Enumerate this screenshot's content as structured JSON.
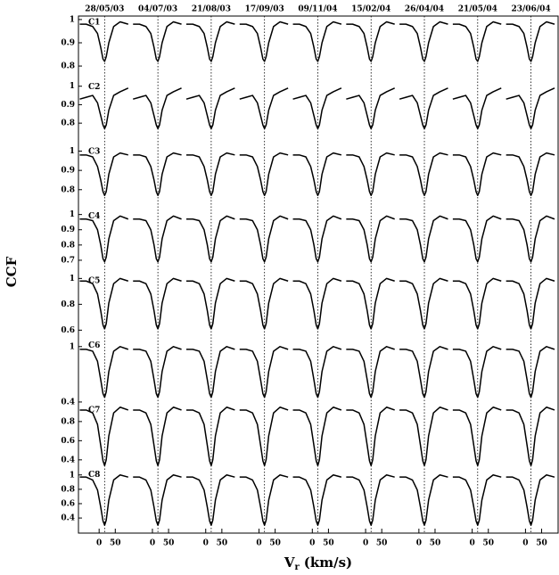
{
  "chart_data": {
    "type": "line",
    "y_label": "CCF",
    "x_label_symbol": "V",
    "x_label_subscript": "r",
    "x_label_units": "(km/s)",
    "columns": [
      "28/05/03",
      "04/07/03",
      "21/08/03",
      "17/09/03",
      "09/11/04",
      "15/02/04",
      "26/04/04",
      "21/05/04",
      "23/06/04"
    ],
    "x": [
      -60,
      -40,
      -20,
      -5,
      5,
      12,
      17,
      22,
      30,
      45,
      65,
      90
    ],
    "xlim": [
      -64,
      101
    ],
    "xticks": [
      0,
      50
    ],
    "reference_x": 17,
    "color": "#000000",
    "rows": [
      {
        "name": "C1",
        "ylim": [
          0.737,
          1.015
        ],
        "yticks": [
          0.8,
          0.9,
          1
        ],
        "values": [
          [
            0.98,
            0.98,
            0.97,
            0.94,
            0.88,
            0.83,
            0.82,
            0.84,
            0.9,
            0.97,
            0.99,
            0.98
          ],
          [
            0.98,
            0.98,
            0.97,
            0.94,
            0.88,
            0.83,
            0.82,
            0.84,
            0.9,
            0.97,
            0.99,
            0.98
          ],
          [
            0.98,
            0.98,
            0.97,
            0.94,
            0.88,
            0.83,
            0.82,
            0.84,
            0.9,
            0.97,
            0.99,
            0.98
          ],
          [
            0.98,
            0.98,
            0.97,
            0.94,
            0.88,
            0.83,
            0.82,
            0.84,
            0.9,
            0.97,
            0.99,
            0.98
          ],
          [
            0.98,
            0.98,
            0.97,
            0.94,
            0.88,
            0.83,
            0.82,
            0.84,
            0.9,
            0.97,
            0.99,
            0.98
          ],
          [
            0.98,
            0.98,
            0.97,
            0.94,
            0.88,
            0.83,
            0.82,
            0.84,
            0.9,
            0.97,
            0.99,
            0.98
          ],
          [
            0.98,
            0.98,
            0.97,
            0.94,
            0.88,
            0.83,
            0.82,
            0.84,
            0.9,
            0.97,
            0.99,
            0.98
          ],
          [
            0.98,
            0.98,
            0.97,
            0.94,
            0.88,
            0.83,
            0.82,
            0.84,
            0.9,
            0.97,
            0.99,
            0.98
          ],
          [
            0.98,
            0.98,
            0.97,
            0.94,
            0.88,
            0.83,
            0.82,
            0.84,
            0.9,
            0.97,
            0.99,
            0.98
          ]
        ]
      },
      {
        "name": "C2",
        "ylim": [
          0.68,
          1.03
        ],
        "yticks": [
          0.8,
          0.9,
          1
        ],
        "values": [
          [
            0.93,
            0.94,
            0.95,
            0.91,
            0.84,
            0.79,
            0.77,
            0.79,
            0.87,
            0.95,
            0.97,
            0.99
          ],
          [
            0.93,
            0.94,
            0.95,
            0.91,
            0.84,
            0.79,
            0.77,
            0.79,
            0.87,
            0.95,
            0.97,
            0.99
          ],
          [
            0.93,
            0.94,
            0.95,
            0.91,
            0.84,
            0.79,
            0.77,
            0.79,
            0.87,
            0.95,
            0.97,
            0.99
          ],
          [
            0.93,
            0.94,
            0.95,
            0.91,
            0.84,
            0.79,
            0.77,
            0.79,
            0.87,
            0.95,
            0.97,
            0.99
          ],
          [
            0.93,
            0.94,
            0.95,
            0.91,
            0.84,
            0.79,
            0.77,
            0.79,
            0.87,
            0.95,
            0.97,
            0.99
          ],
          [
            0.93,
            0.94,
            0.95,
            0.91,
            0.84,
            0.79,
            0.77,
            0.79,
            0.87,
            0.95,
            0.97,
            0.99
          ],
          [
            0.93,
            0.94,
            0.95,
            0.91,
            0.84,
            0.79,
            0.77,
            0.79,
            0.87,
            0.95,
            0.97,
            0.99
          ],
          [
            0.93,
            0.94,
            0.95,
            0.91,
            0.84,
            0.79,
            0.77,
            0.79,
            0.87,
            0.95,
            0.97,
            0.99
          ],
          [
            0.93,
            0.94,
            0.95,
            0.91,
            0.84,
            0.79,
            0.77,
            0.79,
            0.87,
            0.95,
            0.97,
            0.99
          ]
        ]
      },
      {
        "name": "C3",
        "ylim": [
          0.695,
          1.03
        ],
        "yticks": [
          0.8,
          0.9,
          1
        ],
        "values": [
          [
            0.98,
            0.98,
            0.97,
            0.92,
            0.85,
            0.79,
            0.77,
            0.79,
            0.88,
            0.97,
            0.99,
            0.98
          ],
          [
            0.98,
            0.98,
            0.97,
            0.92,
            0.85,
            0.79,
            0.77,
            0.79,
            0.88,
            0.97,
            0.99,
            0.98
          ],
          [
            0.98,
            0.98,
            0.97,
            0.92,
            0.85,
            0.79,
            0.77,
            0.79,
            0.88,
            0.97,
            0.99,
            0.98
          ],
          [
            0.98,
            0.98,
            0.97,
            0.92,
            0.85,
            0.79,
            0.77,
            0.79,
            0.88,
            0.97,
            0.99,
            0.98
          ],
          [
            0.98,
            0.98,
            0.97,
            0.92,
            0.85,
            0.79,
            0.77,
            0.79,
            0.88,
            0.97,
            0.99,
            0.98
          ],
          [
            0.98,
            0.98,
            0.97,
            0.92,
            0.85,
            0.79,
            0.77,
            0.79,
            0.88,
            0.97,
            0.99,
            0.98
          ],
          [
            0.98,
            0.98,
            0.97,
            0.92,
            0.85,
            0.79,
            0.77,
            0.79,
            0.88,
            0.97,
            0.99,
            0.98
          ],
          [
            0.98,
            0.98,
            0.97,
            0.92,
            0.85,
            0.79,
            0.77,
            0.79,
            0.88,
            0.97,
            0.99,
            0.98
          ],
          [
            0.98,
            0.98,
            0.97,
            0.92,
            0.85,
            0.79,
            0.77,
            0.79,
            0.88,
            0.97,
            0.99,
            0.98
          ]
        ]
      },
      {
        "name": "C4",
        "ylim": [
          0.606,
          1.03
        ],
        "yticks": [
          0.7,
          0.8,
          0.9,
          1
        ],
        "values": [
          [
            0.97,
            0.97,
            0.96,
            0.9,
            0.8,
            0.71,
            0.69,
            0.72,
            0.84,
            0.96,
            0.99,
            0.97
          ],
          [
            0.97,
            0.97,
            0.96,
            0.9,
            0.8,
            0.71,
            0.69,
            0.72,
            0.84,
            0.96,
            0.99,
            0.97
          ],
          [
            0.97,
            0.97,
            0.96,
            0.9,
            0.8,
            0.71,
            0.69,
            0.72,
            0.84,
            0.96,
            0.99,
            0.97
          ],
          [
            0.97,
            0.97,
            0.96,
            0.9,
            0.8,
            0.71,
            0.69,
            0.72,
            0.84,
            0.96,
            0.99,
            0.97
          ],
          [
            0.97,
            0.97,
            0.96,
            0.9,
            0.8,
            0.71,
            0.69,
            0.72,
            0.84,
            0.96,
            0.99,
            0.97
          ],
          [
            0.97,
            0.97,
            0.96,
            0.9,
            0.8,
            0.71,
            0.69,
            0.72,
            0.84,
            0.96,
            0.99,
            0.97
          ],
          [
            0.97,
            0.97,
            0.96,
            0.9,
            0.8,
            0.71,
            0.69,
            0.72,
            0.84,
            0.96,
            0.99,
            0.97
          ],
          [
            0.97,
            0.97,
            0.96,
            0.9,
            0.8,
            0.71,
            0.69,
            0.72,
            0.84,
            0.96,
            0.99,
            0.97
          ],
          [
            0.97,
            0.97,
            0.96,
            0.9,
            0.8,
            0.71,
            0.69,
            0.72,
            0.84,
            0.96,
            0.99,
            0.97
          ]
        ]
      },
      {
        "name": "C5",
        "ylim": [
          0.53,
          1.03
        ],
        "yticks": [
          0.6,
          0.8,
          1
        ],
        "values": [
          [
            0.98,
            0.98,
            0.96,
            0.88,
            0.75,
            0.64,
            0.61,
            0.65,
            0.81,
            0.96,
            1.0,
            0.98
          ],
          [
            0.98,
            0.98,
            0.96,
            0.88,
            0.75,
            0.64,
            0.61,
            0.65,
            0.81,
            0.96,
            1.0,
            0.98
          ],
          [
            0.98,
            0.98,
            0.96,
            0.88,
            0.75,
            0.64,
            0.61,
            0.65,
            0.81,
            0.96,
            1.0,
            0.98
          ],
          [
            0.98,
            0.98,
            0.96,
            0.88,
            0.75,
            0.64,
            0.61,
            0.65,
            0.81,
            0.96,
            1.0,
            0.98
          ],
          [
            0.98,
            0.98,
            0.96,
            0.88,
            0.75,
            0.64,
            0.61,
            0.65,
            0.81,
            0.96,
            1.0,
            0.98
          ],
          [
            0.98,
            0.98,
            0.96,
            0.88,
            0.75,
            0.64,
            0.61,
            0.65,
            0.81,
            0.96,
            1.0,
            0.98
          ],
          [
            0.98,
            0.98,
            0.96,
            0.88,
            0.75,
            0.64,
            0.61,
            0.65,
            0.81,
            0.96,
            1.0,
            0.98
          ],
          [
            0.98,
            0.98,
            0.96,
            0.88,
            0.75,
            0.64,
            0.61,
            0.65,
            0.81,
            0.96,
            1.0,
            0.98
          ],
          [
            0.98,
            0.98,
            0.96,
            0.88,
            0.75,
            0.64,
            0.61,
            0.65,
            0.81,
            0.96,
            1.0,
            0.98
          ]
        ]
      },
      {
        "name": "C6",
        "ylim": [
          0.38,
          1.08
        ],
        "yticks": [
          0.4,
          1
        ],
        "values": [
          [
            0.97,
            0.97,
            0.95,
            0.84,
            0.64,
            0.49,
            0.45,
            0.51,
            0.73,
            0.95,
            1.0,
            0.97
          ],
          [
            0.97,
            0.97,
            0.95,
            0.84,
            0.64,
            0.49,
            0.45,
            0.51,
            0.73,
            0.95,
            1.0,
            0.97
          ],
          [
            0.97,
            0.97,
            0.95,
            0.84,
            0.64,
            0.49,
            0.45,
            0.51,
            0.73,
            0.95,
            1.0,
            0.97
          ],
          [
            0.97,
            0.97,
            0.95,
            0.84,
            0.64,
            0.49,
            0.45,
            0.51,
            0.73,
            0.95,
            1.0,
            0.97
          ],
          [
            0.97,
            0.97,
            0.95,
            0.84,
            0.64,
            0.49,
            0.45,
            0.51,
            0.73,
            0.95,
            1.0,
            0.97
          ],
          [
            0.97,
            0.97,
            0.95,
            0.84,
            0.64,
            0.49,
            0.45,
            0.51,
            0.73,
            0.95,
            1.0,
            0.97
          ],
          [
            0.97,
            0.97,
            0.95,
            0.84,
            0.64,
            0.49,
            0.45,
            0.51,
            0.73,
            0.95,
            1.0,
            0.97
          ],
          [
            0.97,
            0.97,
            0.95,
            0.84,
            0.64,
            0.49,
            0.45,
            0.51,
            0.73,
            0.95,
            1.0,
            0.97
          ],
          [
            0.97,
            0.97,
            0.95,
            0.84,
            0.64,
            0.49,
            0.45,
            0.51,
            0.73,
            0.95,
            1.0,
            0.97
          ]
        ]
      },
      {
        "name": "C7",
        "ylim": [
          0.31,
          0.985
        ],
        "yticks": [
          0.4,
          0.6,
          0.8
        ],
        "values": [
          [
            0.92,
            0.92,
            0.89,
            0.77,
            0.55,
            0.39,
            0.34,
            0.4,
            0.65,
            0.89,
            0.95,
            0.92
          ],
          [
            0.92,
            0.92,
            0.89,
            0.77,
            0.55,
            0.39,
            0.34,
            0.4,
            0.65,
            0.89,
            0.95,
            0.92
          ],
          [
            0.92,
            0.92,
            0.89,
            0.77,
            0.55,
            0.39,
            0.34,
            0.4,
            0.65,
            0.89,
            0.95,
            0.92
          ],
          [
            0.92,
            0.92,
            0.89,
            0.77,
            0.55,
            0.39,
            0.34,
            0.4,
            0.65,
            0.89,
            0.95,
            0.92
          ],
          [
            0.92,
            0.92,
            0.89,
            0.77,
            0.55,
            0.39,
            0.34,
            0.4,
            0.65,
            0.89,
            0.95,
            0.92
          ],
          [
            0.92,
            0.92,
            0.89,
            0.77,
            0.55,
            0.39,
            0.34,
            0.4,
            0.65,
            0.89,
            0.95,
            0.92
          ],
          [
            0.92,
            0.92,
            0.89,
            0.77,
            0.55,
            0.39,
            0.34,
            0.4,
            0.65,
            0.89,
            0.95,
            0.92
          ],
          [
            0.92,
            0.92,
            0.89,
            0.77,
            0.55,
            0.39,
            0.34,
            0.4,
            0.65,
            0.89,
            0.95,
            0.92
          ],
          [
            0.92,
            0.92,
            0.89,
            0.77,
            0.55,
            0.39,
            0.34,
            0.4,
            0.65,
            0.89,
            0.95,
            0.92
          ]
        ]
      },
      {
        "name": "C8",
        "ylim": [
          0.19,
          1.09
        ],
        "yticks": [
          0.4,
          0.6,
          0.8,
          1
        ],
        "values": [
          [
            0.97,
            0.97,
            0.93,
            0.79,
            0.55,
            0.36,
            0.3,
            0.37,
            0.65,
            0.93,
            1.0,
            0.97
          ],
          [
            0.97,
            0.97,
            0.93,
            0.79,
            0.55,
            0.36,
            0.3,
            0.37,
            0.65,
            0.93,
            1.0,
            0.97
          ],
          [
            0.97,
            0.97,
            0.93,
            0.79,
            0.55,
            0.36,
            0.3,
            0.37,
            0.65,
            0.93,
            1.0,
            0.97
          ],
          [
            0.97,
            0.97,
            0.93,
            0.79,
            0.55,
            0.36,
            0.3,
            0.37,
            0.65,
            0.93,
            1.0,
            0.97
          ],
          [
            0.97,
            0.97,
            0.93,
            0.79,
            0.55,
            0.36,
            0.3,
            0.37,
            0.65,
            0.93,
            1.0,
            0.97
          ],
          [
            0.97,
            0.97,
            0.93,
            0.79,
            0.55,
            0.36,
            0.3,
            0.37,
            0.65,
            0.93,
            1.0,
            0.97
          ],
          [
            0.97,
            0.97,
            0.93,
            0.79,
            0.55,
            0.36,
            0.3,
            0.37,
            0.65,
            0.93,
            1.0,
            0.97
          ],
          [
            0.97,
            0.97,
            0.93,
            0.79,
            0.55,
            0.36,
            0.3,
            0.37,
            0.65,
            0.93,
            1.0,
            0.97
          ],
          [
            0.97,
            0.97,
            0.93,
            0.79,
            0.55,
            0.36,
            0.3,
            0.37,
            0.65,
            0.93,
            1.0,
            0.97
          ]
        ]
      }
    ]
  }
}
